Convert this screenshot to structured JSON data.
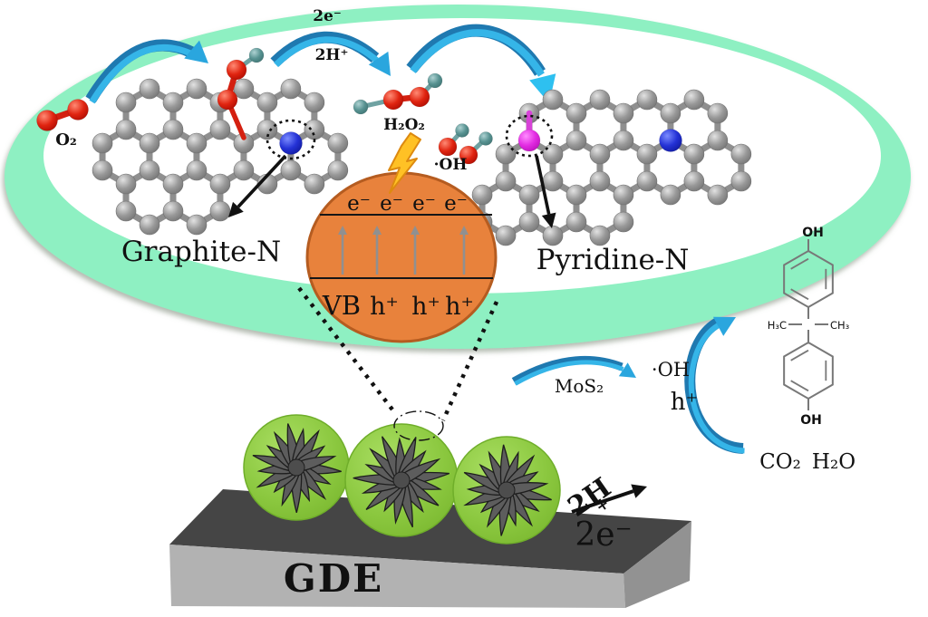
{
  "figure": {
    "title": "Photocatalytic H2O2 mechanism scheme",
    "labels": {
      "o2": "O₂",
      "two_e": "2e⁻",
      "two_h": "2H⁺",
      "h2o2": "H₂O₂",
      "oh_center": "·OH",
      "graphite_n": "Graphite-N",
      "pyridine_n": "Pyridine-N",
      "mos2": "MoS₂",
      "oh_right": "·OH",
      "h_plus_right": "h⁺",
      "co2": "CO₂",
      "h2o": "H₂O",
      "bpa_oh_top": "OH",
      "bpa_oh_bottom": "OH",
      "bpa_h3c": "H₃C",
      "bpa_ch3": "CH₃",
      "two_h_bottom": "2H",
      "plus_bottom": "+",
      "two_e_bottom": "2e⁻",
      "gde": "GDE"
    },
    "band_diagram": {
      "cb_electrons": [
        "e⁻",
        "e⁻",
        "e⁻",
        "e⁻"
      ],
      "vb_label": "VB",
      "vb_holes": [
        "h⁺",
        "h⁺",
        "h⁺"
      ]
    },
    "colors": {
      "ring_green": "#8ef0c2",
      "band_circle_orange": "#e8823c",
      "band_circle_border": "#b55c20",
      "arrow_blue_dark": "#1f79b0",
      "arrow_blue_light": "#35b5e8",
      "sphere_green": "#8ac73e",
      "nanoflower_gray": "#5d5d5d",
      "gde_top": "#454545",
      "gde_front": "#b2b2b2",
      "gde_side": "#929292",
      "oxygen_red": "#d42010",
      "nitrogen_blue": "#2030d0",
      "pyridinic_magenta": "#e22ce2",
      "hydrogen_teal": "#579291",
      "carbon_gray": "#969696",
      "lightning_yellow": "#ffc125",
      "bpa_oh_red": "#f05050"
    }
  }
}
